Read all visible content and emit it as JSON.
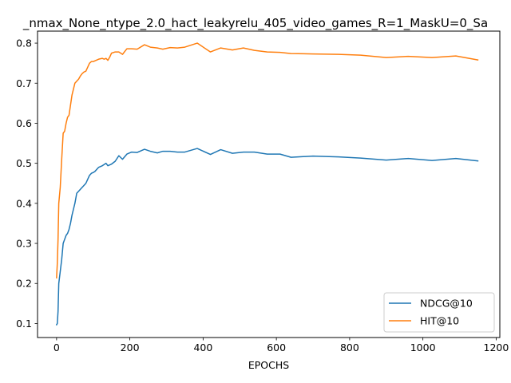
{
  "chart_data": {
    "type": "line",
    "title": "_nmax_None_ntype_2.0_hact_leakyrelu_405_video_games_R=1_MaskU=0_Sa",
    "xlabel": "EPOCHS",
    "ylabel": "",
    "xlim": [
      -52,
      1210
    ],
    "ylim": [
      0.065,
      0.83
    ],
    "xticks": [
      0,
      200,
      400,
      600,
      800,
      1000,
      1200
    ],
    "yticks": [
      0.1,
      0.2,
      0.3,
      0.4,
      0.5,
      0.6,
      0.7,
      0.8
    ],
    "xtick_labels": [
      "0",
      "200",
      "400",
      "600",
      "800",
      "1000",
      "1200"
    ],
    "ytick_labels": [
      "0.1",
      "0.2",
      "0.3",
      "0.4",
      "0.5",
      "0.6",
      "0.7",
      "0.8"
    ],
    "legend_position": "lower-right",
    "grid": false,
    "series": [
      {
        "name": "NDCG@10",
        "color": "#1f77b4",
        "x": [
          0,
          2,
          4,
          6,
          8,
          10,
          14,
          18,
          22,
          26,
          30,
          34,
          38,
          42,
          46,
          50,
          55,
          60,
          65,
          70,
          75,
          80,
          85,
          90,
          95,
          100,
          105,
          110,
          115,
          120,
          125,
          130,
          135,
          140,
          145,
          150,
          160,
          170,
          180,
          192,
          205,
          220,
          240,
          256,
          275,
          290,
          310,
          330,
          350,
          384,
          420,
          448,
          480,
          510,
          540,
          575,
          610,
          640,
          700,
          770,
          830,
          900,
          960,
          1025,
          1090,
          1150
        ],
        "y": [
          0.097,
          0.1,
          0.13,
          0.2,
          0.215,
          0.23,
          0.26,
          0.3,
          0.31,
          0.32,
          0.325,
          0.335,
          0.35,
          0.37,
          0.385,
          0.4,
          0.425,
          0.43,
          0.435,
          0.44,
          0.445,
          0.45,
          0.46,
          0.47,
          0.475,
          0.477,
          0.48,
          0.485,
          0.49,
          0.492,
          0.494,
          0.497,
          0.5,
          0.494,
          0.496,
          0.498,
          0.505,
          0.519,
          0.51,
          0.523,
          0.528,
          0.527,
          0.535,
          0.53,
          0.526,
          0.53,
          0.53,
          0.528,
          0.528,
          0.537,
          0.522,
          0.534,
          0.525,
          0.528,
          0.528,
          0.523,
          0.523,
          0.515,
          0.518,
          0.516,
          0.513,
          0.508,
          0.512,
          0.507,
          0.512,
          0.506
        ]
      },
      {
        "name": "HIT@10",
        "color": "#ff7f0e",
        "x": [
          0,
          2,
          4,
          6,
          8,
          10,
          14,
          18,
          22,
          26,
          30,
          34,
          38,
          42,
          46,
          50,
          55,
          60,
          65,
          70,
          75,
          80,
          85,
          90,
          95,
          100,
          105,
          110,
          115,
          120,
          125,
          130,
          135,
          140,
          145,
          150,
          160,
          170,
          180,
          192,
          205,
          220,
          240,
          256,
          275,
          290,
          310,
          330,
          350,
          384,
          420,
          448,
          480,
          510,
          540,
          575,
          610,
          640,
          700,
          770,
          830,
          900,
          960,
          1025,
          1090,
          1150
        ],
        "y": [
          0.214,
          0.25,
          0.31,
          0.4,
          0.42,
          0.44,
          0.51,
          0.575,
          0.58,
          0.6,
          0.615,
          0.62,
          0.645,
          0.67,
          0.685,
          0.7,
          0.705,
          0.71,
          0.718,
          0.724,
          0.728,
          0.73,
          0.74,
          0.75,
          0.754,
          0.754,
          0.756,
          0.758,
          0.76,
          0.761,
          0.762,
          0.76,
          0.762,
          0.757,
          0.765,
          0.775,
          0.778,
          0.778,
          0.772,
          0.786,
          0.786,
          0.785,
          0.796,
          0.79,
          0.788,
          0.785,
          0.789,
          0.788,
          0.79,
          0.8,
          0.778,
          0.788,
          0.783,
          0.788,
          0.782,
          0.778,
          0.777,
          0.774,
          0.773,
          0.772,
          0.77,
          0.764,
          0.767,
          0.764,
          0.768,
          0.758
        ]
      }
    ]
  }
}
